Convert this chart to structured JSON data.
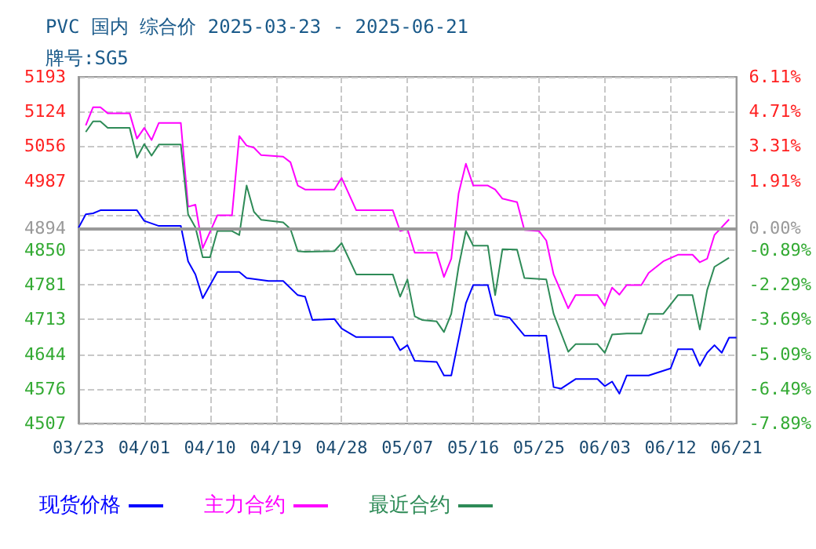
{
  "chart_data": {
    "type": "line",
    "title": "PVC 国内 综合价 2025-03-23 - 2025-06-21",
    "subtitle": "牌号:SG5",
    "xlim": [
      "2025-03-23",
      "2025-06-21"
    ],
    "xticks": [
      {
        "value": "2025-03-23",
        "label": "03/23"
      },
      {
        "value": "2025-04-01",
        "label": "04/01"
      },
      {
        "value": "2025-04-10",
        "label": "04/10"
      },
      {
        "value": "2025-04-19",
        "label": "04/19"
      },
      {
        "value": "2025-04-28",
        "label": "04/28"
      },
      {
        "value": "2025-05-07",
        "label": "05/07"
      },
      {
        "value": "2025-05-16",
        "label": "05/16"
      },
      {
        "value": "2025-05-25",
        "label": "05/25"
      },
      {
        "value": "2025-06-03",
        "label": "06/03"
      },
      {
        "value": "2025-06-12",
        "label": "06/12"
      },
      {
        "value": "2025-06-21",
        "label": "06/21"
      }
    ],
    "ylim": [
      4507,
      5193
    ],
    "yticks": [
      5193,
      5124,
      5056,
      4987,
      {
        "value": 4918.6,
        "label": null
      },
      4894,
      4850,
      4781,
      4713,
      4644,
      4576,
      4507
    ],
    "y2lim": [
      -7.89,
      6.11
    ],
    "y2ticks": [
      {
        "value": 6.11,
        "label": "6.11%"
      },
      {
        "value": 4.71,
        "label": "4.71%"
      },
      {
        "value": 3.31,
        "label": "3.31%"
      },
      {
        "value": 1.91,
        "label": "1.91%"
      },
      {
        "value": 0,
        "label": "0.00%"
      },
      {
        "value": -0.89,
        "label": "-0.89%"
      },
      {
        "value": -2.29,
        "label": "-2.29%"
      },
      {
        "value": -3.69,
        "label": "-3.69%"
      },
      {
        "value": -5.09,
        "label": "-5.09%"
      },
      {
        "value": -6.49,
        "label": "-6.49%"
      },
      {
        "value": -7.89,
        "label": "-7.89%"
      }
    ],
    "ref_lines": [
      {
        "axis": "y",
        "value": 4894,
        "color": "#999999"
      }
    ],
    "grid": true,
    "legend": "bottom",
    "marker": "none",
    "line_style": "solid",
    "series": [
      {
        "name": "现货价格",
        "color": "#0000ff",
        "x": [
          "2025-03-23",
          "2025-03-24",
          "2025-03-25",
          "2025-03-26",
          "2025-03-31",
          "2025-04-01",
          "2025-04-03",
          "2025-04-06",
          "2025-04-07",
          "2025-04-08",
          "2025-04-09",
          "2025-04-11",
          "2025-04-14",
          "2025-04-15",
          "2025-04-18",
          "2025-04-20",
          "2025-04-22",
          "2025-04-23",
          "2025-04-24",
          "2025-04-27",
          "2025-04-28",
          "2025-04-30",
          "2025-05-05",
          "2025-05-06",
          "2025-05-07",
          "2025-05-08",
          "2025-05-11",
          "2025-05-12",
          "2025-05-13",
          "2025-05-15",
          "2025-05-16",
          "2025-05-18",
          "2025-05-19",
          "2025-05-21",
          "2025-05-23",
          "2025-05-26",
          "2025-05-27",
          "2025-05-28",
          "2025-05-30",
          "2025-06-02",
          "2025-06-03",
          "2025-06-04",
          "2025-06-05",
          "2025-06-06",
          "2025-06-09",
          "2025-06-12",
          "2025-06-13",
          "2025-06-15",
          "2025-06-16",
          "2025-06-17",
          "2025-06-18",
          "2025-06-19",
          "2025-06-20",
          "2025-06-21"
        ],
        "values": [
          4894,
          4921,
          4923,
          4929,
          4929,
          4908,
          4898,
          4898,
          4828,
          4802,
          4755,
          4807,
          4807,
          4795,
          4789,
          4789,
          4761,
          4758,
          4712,
          4714,
          4695,
          4678,
          4678,
          4652,
          4662,
          4631,
          4629,
          4602,
          4602,
          4745,
          4781,
          4781,
          4722,
          4716,
          4681,
          4681,
          4579,
          4576,
          4595,
          4595,
          4581,
          4590,
          4566,
          4602,
          4602,
          4616,
          4654,
          4654,
          4621,
          4647,
          4662,
          4647,
          4677,
          4677
        ]
      },
      {
        "name": "主力合约",
        "color": "#ff00ff",
        "x": [
          "2025-03-24",
          "2025-03-25",
          "2025-03-26",
          "2025-03-27",
          "2025-03-30",
          "2025-03-31",
          "2025-04-01",
          "2025-04-02",
          "2025-04-03",
          "2025-04-06",
          "2025-04-07",
          "2025-04-08",
          "2025-04-09",
          "2025-04-11",
          "2025-04-13",
          "2025-04-14",
          "2025-04-15",
          "2025-04-16",
          "2025-04-17",
          "2025-04-20",
          "2025-04-21",
          "2025-04-22",
          "2025-04-23",
          "2025-04-27",
          "2025-04-28",
          "2025-04-30",
          "2025-05-05",
          "2025-05-06",
          "2025-05-07",
          "2025-05-08",
          "2025-05-11",
          "2025-05-12",
          "2025-05-13",
          "2025-05-14",
          "2025-05-15",
          "2025-05-16",
          "2025-05-18",
          "2025-05-19",
          "2025-05-20",
          "2025-05-22",
          "2025-05-23",
          "2025-05-25",
          "2025-05-26",
          "2025-05-27",
          "2025-05-29",
          "2025-05-30",
          "2025-06-02",
          "2025-06-03",
          "2025-06-04",
          "2025-06-05",
          "2025-06-06",
          "2025-06-08",
          "2025-06-09",
          "2025-06-11",
          "2025-06-13",
          "2025-06-15",
          "2025-06-16",
          "2025-06-17",
          "2025-06-18",
          "2025-06-20"
        ],
        "values": [
          5097,
          5133,
          5133,
          5121,
          5121,
          5071,
          5092,
          5068,
          5102,
          5102,
          4936,
          4940,
          4854,
          4919,
          4919,
          5076,
          5057,
          5053,
          5038,
          5035,
          5024,
          4978,
          4970,
          4970,
          4993,
          4929,
          4929,
          4888,
          4892,
          4845,
          4845,
          4797,
          4833,
          4962,
          5021,
          4978,
          4978,
          4970,
          4952,
          4945,
          4890,
          4888,
          4869,
          4802,
          4735,
          4761,
          4761,
          4740,
          4776,
          4762,
          4781,
          4781,
          4805,
          4828,
          4841,
          4841,
          4826,
          4833,
          4880,
          4911
        ]
      },
      {
        "name": "最近合约",
        "color": "#2e8b57",
        "x": [
          "2025-03-24",
          "2025-03-25",
          "2025-03-26",
          "2025-03-27",
          "2025-03-30",
          "2025-03-31",
          "2025-04-01",
          "2025-04-02",
          "2025-04-03",
          "2025-04-06",
          "2025-04-07",
          "2025-04-08",
          "2025-04-09",
          "2025-04-10",
          "2025-04-11",
          "2025-04-13",
          "2025-04-14",
          "2025-04-15",
          "2025-04-16",
          "2025-04-17",
          "2025-04-20",
          "2025-04-21",
          "2025-04-22",
          "2025-04-23",
          "2025-04-27",
          "2025-04-28",
          "2025-04-30",
          "2025-05-05",
          "2025-05-06",
          "2025-05-07",
          "2025-05-08",
          "2025-05-09",
          "2025-05-11",
          "2025-05-12",
          "2025-05-13",
          "2025-05-14",
          "2025-05-15",
          "2025-05-16",
          "2025-05-18",
          "2025-05-19",
          "2025-05-20",
          "2025-05-22",
          "2025-05-23",
          "2025-05-26",
          "2025-05-27",
          "2025-05-29",
          "2025-05-30",
          "2025-06-02",
          "2025-06-03",
          "2025-06-04",
          "2025-06-06",
          "2025-06-08",
          "2025-06-09",
          "2025-06-11",
          "2025-06-13",
          "2025-06-15",
          "2025-06-16",
          "2025-06-17",
          "2025-06-18",
          "2025-06-20"
        ],
        "values": [
          5084,
          5105,
          5105,
          5092,
          5092,
          5033,
          5060,
          5037,
          5059,
          5059,
          4921,
          4895,
          4836,
          4836,
          4888,
          4888,
          4880,
          4978,
          4926,
          4910,
          4905,
          4892,
          4848,
          4847,
          4848,
          4864,
          4802,
          4802,
          4758,
          4792,
          4719,
          4712,
          4709,
          4688,
          4724,
          4817,
          4888,
          4859,
          4859,
          4761,
          4852,
          4851,
          4795,
          4792,
          4724,
          4649,
          4664,
          4664,
          4647,
          4683,
          4685,
          4685,
          4724,
          4724,
          4761,
          4761,
          4693,
          4771,
          4817,
          4835
        ]
      }
    ]
  }
}
